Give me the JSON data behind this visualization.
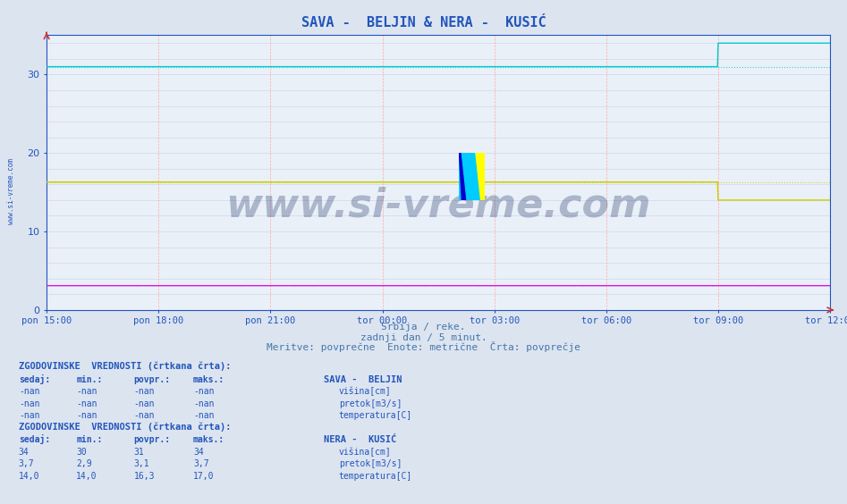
{
  "title": "SAVA -  BELJIN & NERA -  KUSIĆ",
  "subtitle1": "Srbija / reke.",
  "subtitle2": "zadnji dan / 5 minut.",
  "subtitle3": "Meritve: povprečne  Enote: metrične  Črta: povprečje",
  "bg_color": "#dce4f0",
  "plot_bg_color": "#eaf0f8",
  "title_color": "#2255bb",
  "axis_color": "#2255bb",
  "subtitle_color": "#4477aa",
  "text_color": "#2255bb",
  "watermark_color": "#1a3066",
  "grid_h_color": "#c8d0e8",
  "grid_v_color": "#ffaaaa",
  "x_start": 0,
  "x_end": 1260,
  "x_ticks": [
    0,
    180,
    360,
    540,
    720,
    900,
    1080,
    1260
  ],
  "x_tick_labels": [
    "pon 15:00",
    "pon 18:00",
    "pon 21:00",
    "tor 00:00",
    "tor 03:00",
    "tor 06:00",
    "tor 09:00",
    "tor 12:00"
  ],
  "ylim": [
    0,
    35
  ],
  "y_ticks": [
    0,
    10,
    20,
    30
  ],
  "watermark": "www.si-vreme.com",
  "nera_visina_start": 31,
  "nera_visina_end": 34,
  "nera_visina_jump_x": 1080,
  "nera_pretok_val": 3.1,
  "nera_temp_start": 16.3,
  "nera_temp_mid": 16.5,
  "nera_temp_drop": 14.0,
  "nera_temp_drop_x": 1080,
  "nera_visina_color": "#00cccc",
  "nera_pretok_color": "#dd00dd",
  "nera_temp_color": "#cccc00",
  "nera_visina_avg": 31,
  "nera_temp_avg": 16.3,
  "table1_header": "ZGODOVINSKE  VREDNOSTI (črtkana črta):",
  "table1_col_headers": [
    "sedaj:",
    "min.:",
    "povpr.:",
    "maks.:"
  ],
  "table1_name": "SAVA -  BELJIN",
  "table1_rows": [
    [
      "-nan",
      "-nan",
      "-nan",
      "-nan",
      "#0000bb",
      "višina[cm]"
    ],
    [
      "-nan",
      "-nan",
      "-nan",
      "-nan",
      "#00bb00",
      "pretok[m3/s]"
    ],
    [
      "-nan",
      "-nan",
      "-nan",
      "-nan",
      "#bb0000",
      "temperatura[C]"
    ]
  ],
  "table2_header": "ZGODOVINSKE  VREDNOSTI (črtkana črta):",
  "table2_name": "NERA -  KUSIĆ",
  "table2_rows": [
    [
      "34",
      "30",
      "31",
      "34",
      "#00cccc",
      "višina[cm]"
    ],
    [
      "3,7",
      "2,9",
      "3,1",
      "3,7",
      "#dd00dd",
      "pretok[m3/s]"
    ],
    [
      "14,0",
      "14,0",
      "16,3",
      "17,0",
      "#cccc00",
      "temperatura[C]"
    ]
  ]
}
